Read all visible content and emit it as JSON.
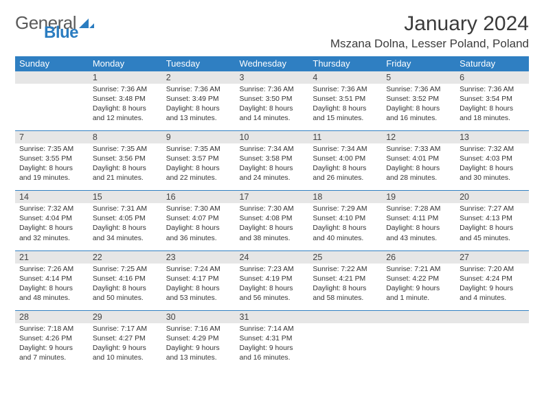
{
  "logo": {
    "text_a": "General",
    "text_b": "Blue"
  },
  "title": "January 2024",
  "location": "Mszana Dolna, Lesser Poland, Poland",
  "weekdays": [
    "Sunday",
    "Monday",
    "Tuesday",
    "Wednesday",
    "Thursday",
    "Friday",
    "Saturday"
  ],
  "colors": {
    "header_bg": "#2f7fc2",
    "header_text": "#ffffff",
    "daynum_bg": "#e6e6e6",
    "border": "#2f7fc2",
    "logo_gray": "#5a5a5a",
    "logo_blue": "#2a7cc0"
  },
  "weeks": [
    {
      "nums": [
        "",
        "1",
        "2",
        "3",
        "4",
        "5",
        "6"
      ],
      "cells": [
        null,
        {
          "sr": "Sunrise: 7:36 AM",
          "ss": "Sunset: 3:48 PM",
          "dl": "Daylight: 8 hours and 12 minutes."
        },
        {
          "sr": "Sunrise: 7:36 AM",
          "ss": "Sunset: 3:49 PM",
          "dl": "Daylight: 8 hours and 13 minutes."
        },
        {
          "sr": "Sunrise: 7:36 AM",
          "ss": "Sunset: 3:50 PM",
          "dl": "Daylight: 8 hours and 14 minutes."
        },
        {
          "sr": "Sunrise: 7:36 AM",
          "ss": "Sunset: 3:51 PM",
          "dl": "Daylight: 8 hours and 15 minutes."
        },
        {
          "sr": "Sunrise: 7:36 AM",
          "ss": "Sunset: 3:52 PM",
          "dl": "Daylight: 8 hours and 16 minutes."
        },
        {
          "sr": "Sunrise: 7:36 AM",
          "ss": "Sunset: 3:54 PM",
          "dl": "Daylight: 8 hours and 18 minutes."
        }
      ]
    },
    {
      "nums": [
        "7",
        "8",
        "9",
        "10",
        "11",
        "12",
        "13"
      ],
      "cells": [
        {
          "sr": "Sunrise: 7:35 AM",
          "ss": "Sunset: 3:55 PM",
          "dl": "Daylight: 8 hours and 19 minutes."
        },
        {
          "sr": "Sunrise: 7:35 AM",
          "ss": "Sunset: 3:56 PM",
          "dl": "Daylight: 8 hours and 21 minutes."
        },
        {
          "sr": "Sunrise: 7:35 AM",
          "ss": "Sunset: 3:57 PM",
          "dl": "Daylight: 8 hours and 22 minutes."
        },
        {
          "sr": "Sunrise: 7:34 AM",
          "ss": "Sunset: 3:58 PM",
          "dl": "Daylight: 8 hours and 24 minutes."
        },
        {
          "sr": "Sunrise: 7:34 AM",
          "ss": "Sunset: 4:00 PM",
          "dl": "Daylight: 8 hours and 26 minutes."
        },
        {
          "sr": "Sunrise: 7:33 AM",
          "ss": "Sunset: 4:01 PM",
          "dl": "Daylight: 8 hours and 28 minutes."
        },
        {
          "sr": "Sunrise: 7:32 AM",
          "ss": "Sunset: 4:03 PM",
          "dl": "Daylight: 8 hours and 30 minutes."
        }
      ]
    },
    {
      "nums": [
        "14",
        "15",
        "16",
        "17",
        "18",
        "19",
        "20"
      ],
      "cells": [
        {
          "sr": "Sunrise: 7:32 AM",
          "ss": "Sunset: 4:04 PM",
          "dl": "Daylight: 8 hours and 32 minutes."
        },
        {
          "sr": "Sunrise: 7:31 AM",
          "ss": "Sunset: 4:05 PM",
          "dl": "Daylight: 8 hours and 34 minutes."
        },
        {
          "sr": "Sunrise: 7:30 AM",
          "ss": "Sunset: 4:07 PM",
          "dl": "Daylight: 8 hours and 36 minutes."
        },
        {
          "sr": "Sunrise: 7:30 AM",
          "ss": "Sunset: 4:08 PM",
          "dl": "Daylight: 8 hours and 38 minutes."
        },
        {
          "sr": "Sunrise: 7:29 AM",
          "ss": "Sunset: 4:10 PM",
          "dl": "Daylight: 8 hours and 40 minutes."
        },
        {
          "sr": "Sunrise: 7:28 AM",
          "ss": "Sunset: 4:11 PM",
          "dl": "Daylight: 8 hours and 43 minutes."
        },
        {
          "sr": "Sunrise: 7:27 AM",
          "ss": "Sunset: 4:13 PM",
          "dl": "Daylight: 8 hours and 45 minutes."
        }
      ]
    },
    {
      "nums": [
        "21",
        "22",
        "23",
        "24",
        "25",
        "26",
        "27"
      ],
      "cells": [
        {
          "sr": "Sunrise: 7:26 AM",
          "ss": "Sunset: 4:14 PM",
          "dl": "Daylight: 8 hours and 48 minutes."
        },
        {
          "sr": "Sunrise: 7:25 AM",
          "ss": "Sunset: 4:16 PM",
          "dl": "Daylight: 8 hours and 50 minutes."
        },
        {
          "sr": "Sunrise: 7:24 AM",
          "ss": "Sunset: 4:17 PM",
          "dl": "Daylight: 8 hours and 53 minutes."
        },
        {
          "sr": "Sunrise: 7:23 AM",
          "ss": "Sunset: 4:19 PM",
          "dl": "Daylight: 8 hours and 56 minutes."
        },
        {
          "sr": "Sunrise: 7:22 AM",
          "ss": "Sunset: 4:21 PM",
          "dl": "Daylight: 8 hours and 58 minutes."
        },
        {
          "sr": "Sunrise: 7:21 AM",
          "ss": "Sunset: 4:22 PM",
          "dl": "Daylight: 9 hours and 1 minute."
        },
        {
          "sr": "Sunrise: 7:20 AM",
          "ss": "Sunset: 4:24 PM",
          "dl": "Daylight: 9 hours and 4 minutes."
        }
      ]
    },
    {
      "nums": [
        "28",
        "29",
        "30",
        "31",
        "",
        "",
        ""
      ],
      "cells": [
        {
          "sr": "Sunrise: 7:18 AM",
          "ss": "Sunset: 4:26 PM",
          "dl": "Daylight: 9 hours and 7 minutes."
        },
        {
          "sr": "Sunrise: 7:17 AM",
          "ss": "Sunset: 4:27 PM",
          "dl": "Daylight: 9 hours and 10 minutes."
        },
        {
          "sr": "Sunrise: 7:16 AM",
          "ss": "Sunset: 4:29 PM",
          "dl": "Daylight: 9 hours and 13 minutes."
        },
        {
          "sr": "Sunrise: 7:14 AM",
          "ss": "Sunset: 4:31 PM",
          "dl": "Daylight: 9 hours and 16 minutes."
        },
        null,
        null,
        null
      ]
    }
  ]
}
